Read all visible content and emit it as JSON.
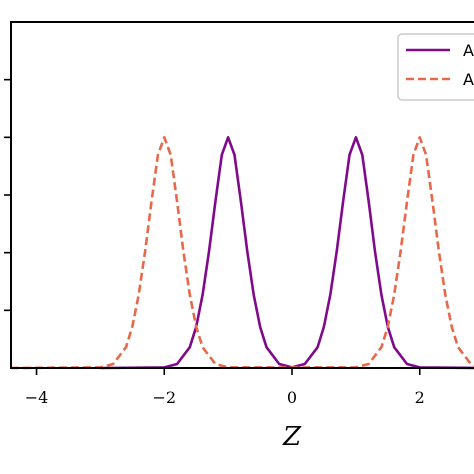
{
  "chart_data": {
    "type": "line",
    "title": "",
    "xlabel": "Z",
    "ylabel": "",
    "xlim": [
      -4.4,
      3.1
    ],
    "ylim": [
      0,
      1.2
    ],
    "xticks": [
      -4,
      -2,
      0,
      2
    ],
    "xtick_labels": [
      "−4",
      "−2",
      "0",
      "2"
    ],
    "yticks": [
      0.2,
      0.4,
      0.6,
      0.8,
      1.0
    ],
    "grid": false,
    "legend": {
      "placement": "top-right",
      "entries": [
        "A",
        "A"
      ]
    },
    "series": [
      {
        "name": "A",
        "color": "#800a8c",
        "style": "solid",
        "x": [
          -3.0,
          -2.0,
          -1.8,
          -1.6,
          -1.5,
          -1.4,
          -1.3,
          -1.2,
          -1.1,
          -1.0,
          -0.9,
          -0.8,
          -0.7,
          -0.6,
          -0.5,
          -0.4,
          -0.2,
          0.0,
          0.2,
          0.4,
          0.5,
          0.6,
          0.7,
          0.8,
          0.9,
          1.0,
          1.1,
          1.2,
          1.3,
          1.4,
          1.5,
          1.6,
          1.8,
          2.0,
          3.0
        ],
        "y": [
          0.0,
          0.002,
          0.014,
          0.072,
          0.143,
          0.254,
          0.404,
          0.577,
          0.739,
          0.8,
          0.739,
          0.577,
          0.404,
          0.254,
          0.143,
          0.072,
          0.014,
          0.002,
          0.014,
          0.072,
          0.143,
          0.254,
          0.404,
          0.577,
          0.739,
          0.8,
          0.739,
          0.577,
          0.404,
          0.254,
          0.143,
          0.072,
          0.014,
          0.002,
          0.0
        ]
      },
      {
        "name": "A",
        "color": "#e8694a",
        "style": "dashed",
        "x": [
          -4.4,
          -3.0,
          -2.8,
          -2.6,
          -2.5,
          -2.4,
          -2.3,
          -2.2,
          -2.1,
          -2.0,
          -1.9,
          -1.8,
          -1.7,
          -1.6,
          -1.5,
          -1.4,
          -1.2,
          -1.0,
          1.0,
          1.2,
          1.4,
          1.5,
          1.6,
          1.7,
          1.8,
          1.9,
          2.0,
          2.1,
          2.2,
          2.3,
          2.4,
          2.5,
          2.6,
          2.8,
          3.0,
          3.1
        ],
        "y": [
          0.0,
          0.002,
          0.014,
          0.072,
          0.143,
          0.254,
          0.404,
          0.577,
          0.739,
          0.8,
          0.739,
          0.577,
          0.404,
          0.254,
          0.143,
          0.072,
          0.014,
          0.002,
          0.002,
          0.014,
          0.072,
          0.143,
          0.254,
          0.404,
          0.577,
          0.739,
          0.8,
          0.739,
          0.577,
          0.404,
          0.254,
          0.143,
          0.072,
          0.014,
          0.002,
          0.001
        ]
      }
    ]
  }
}
